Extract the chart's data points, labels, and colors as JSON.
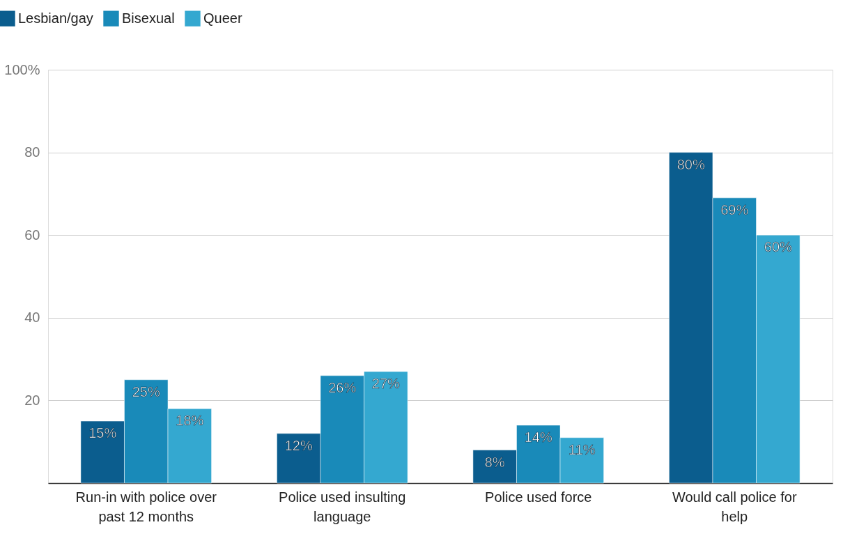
{
  "chart_data": {
    "type": "bar",
    "categories": [
      "Run-in with police over past 12 months",
      "Police used insulting language",
      "Police used force",
      "Would call police for help"
    ],
    "series": [
      {
        "name": "Lesbian/gay",
        "color": "#0b5d8e",
        "values": [
          15,
          12,
          8,
          80
        ],
        "value_labels": [
          "15%",
          "12%",
          "8%",
          "80%"
        ]
      },
      {
        "name": "Bisexual",
        "color": "#198ab9",
        "values": [
          25,
          26,
          14,
          69
        ],
        "value_labels": [
          "25%",
          "26%",
          "14%",
          "69%"
        ]
      },
      {
        "name": "Queer",
        "color": "#34a8d0",
        "values": [
          18,
          27,
          11,
          60
        ],
        "value_labels": [
          "18%",
          "27%",
          "11%",
          "60%"
        ]
      }
    ],
    "ylim": [
      0,
      100
    ],
    "yticks": [
      {
        "value": 0,
        "label": null
      },
      20,
      40,
      60,
      80,
      {
        "value": 100,
        "label": "100%"
      }
    ],
    "grid": "y",
    "legend": "top left"
  }
}
